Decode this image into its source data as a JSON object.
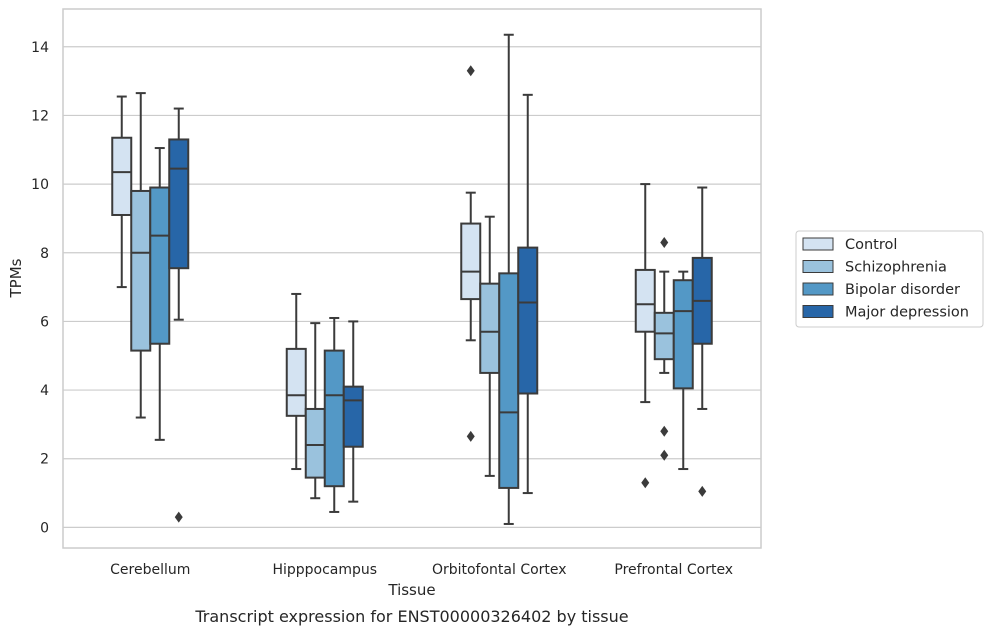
{
  "chart_data": {
    "type": "box",
    "title": "",
    "caption": "Transcript expression for ENST00000326402 by tissue",
    "xlabel": "Tissue",
    "ylabel": "TPMs",
    "ylim": [
      -0.6,
      15.1
    ],
    "yticks": [
      0,
      2,
      4,
      6,
      8,
      10,
      12,
      14
    ],
    "grid": "horizontal",
    "legend_position": "right",
    "categories": [
      "Cerebellum",
      "Hipppocampus",
      "Orbitofontal Cortex",
      "Prefrontal Cortex"
    ],
    "colors": [
      "#d4e3f2",
      "#9ac2dd",
      "#5398c6",
      "#2766a8"
    ],
    "series": [
      {
        "name": "Control",
        "boxes": [
          {
            "whisker_low": 7.0,
            "q1": 9.1,
            "median": 10.35,
            "q3": 11.35,
            "whisker_high": 12.55,
            "outliers": []
          },
          {
            "whisker_low": 1.7,
            "q1": 3.25,
            "median": 3.85,
            "q3": 5.2,
            "whisker_high": 6.8,
            "outliers": []
          },
          {
            "whisker_low": 5.45,
            "q1": 6.65,
            "median": 7.45,
            "q3": 8.85,
            "whisker_high": 9.75,
            "outliers": [
              13.3,
              2.65
            ]
          },
          {
            "whisker_low": 3.65,
            "q1": 5.7,
            "median": 6.5,
            "q3": 7.5,
            "whisker_high": 10.0,
            "outliers": [
              1.3
            ]
          }
        ]
      },
      {
        "name": "Schizophrenia",
        "boxes": [
          {
            "whisker_low": 3.2,
            "q1": 5.15,
            "median": 8.0,
            "q3": 9.8,
            "whisker_high": 12.65,
            "outliers": []
          },
          {
            "whisker_low": 0.85,
            "q1": 1.45,
            "median": 2.4,
            "q3": 3.45,
            "whisker_high": 5.95,
            "outliers": []
          },
          {
            "whisker_low": 1.5,
            "q1": 4.5,
            "median": 5.7,
            "q3": 7.1,
            "whisker_high": 9.05,
            "outliers": []
          },
          {
            "whisker_low": 4.5,
            "q1": 4.9,
            "median": 5.65,
            "q3": 6.25,
            "whisker_high": 7.45,
            "outliers": [
              8.3,
              2.8,
              2.1
            ]
          }
        ]
      },
      {
        "name": "Bipolar disorder",
        "boxes": [
          {
            "whisker_low": 2.55,
            "q1": 5.35,
            "median": 8.5,
            "q3": 9.9,
            "whisker_high": 11.05,
            "outliers": []
          },
          {
            "whisker_low": 0.45,
            "q1": 1.2,
            "median": 3.85,
            "q3": 5.15,
            "whisker_high": 6.1,
            "outliers": []
          },
          {
            "whisker_low": 0.1,
            "q1": 1.15,
            "median": 3.35,
            "q3": 7.4,
            "whisker_high": 14.35,
            "outliers": []
          },
          {
            "whisker_low": 1.7,
            "q1": 4.05,
            "median": 6.3,
            "q3": 7.2,
            "whisker_high": 7.45,
            "outliers": []
          }
        ]
      },
      {
        "name": "Major depression",
        "boxes": [
          {
            "whisker_low": 6.05,
            "q1": 7.55,
            "median": 10.45,
            "q3": 11.3,
            "whisker_high": 12.2,
            "outliers": [
              0.3
            ]
          },
          {
            "whisker_low": 0.75,
            "q1": 2.35,
            "median": 3.7,
            "q3": 4.1,
            "whisker_high": 6.0,
            "outliers": []
          },
          {
            "whisker_low": 1.0,
            "q1": 3.9,
            "median": 6.55,
            "q3": 8.15,
            "whisker_high": 12.6,
            "outliers": []
          },
          {
            "whisker_low": 3.45,
            "q1": 5.35,
            "median": 6.6,
            "q3": 7.85,
            "whisker_high": 9.9,
            "outliers": [
              1.05
            ]
          }
        ]
      }
    ]
  }
}
